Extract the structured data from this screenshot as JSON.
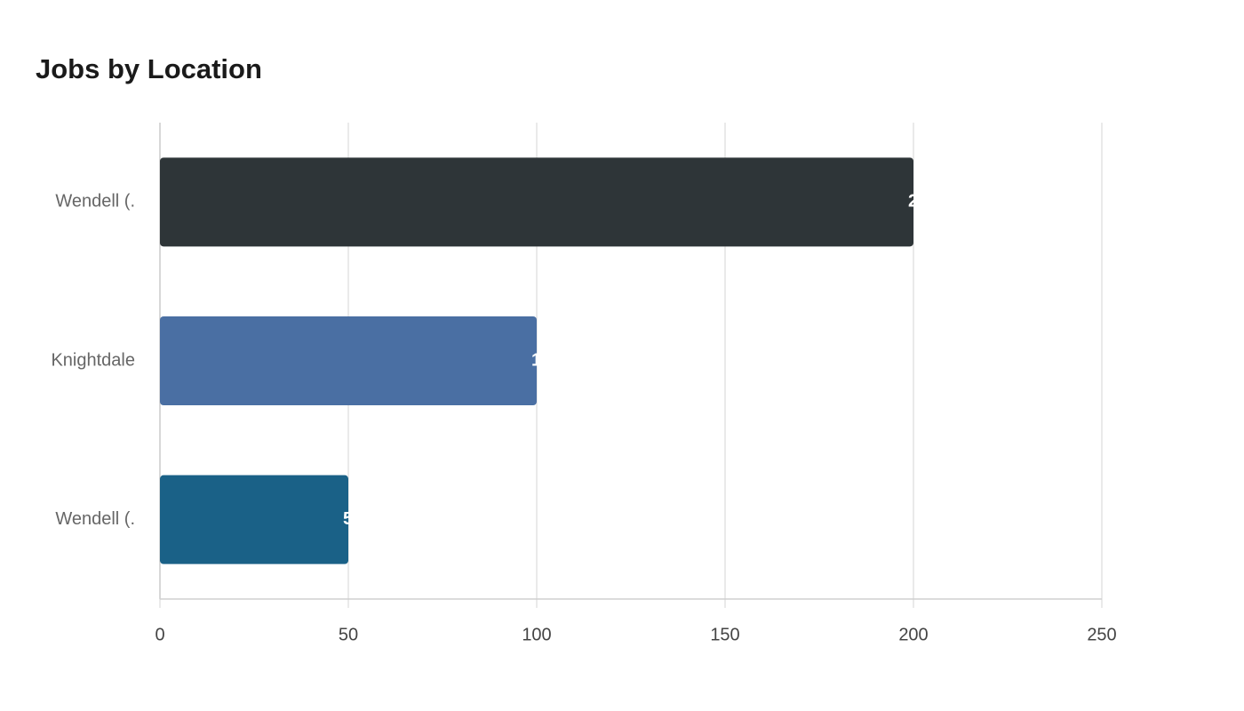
{
  "chart_data": {
    "type": "bar",
    "orientation": "horizontal",
    "title": "Jobs by Location",
    "categories": [
      "Wendell (.",
      "Knightdale",
      "Wendell (."
    ],
    "series": [
      {
        "values": [
          200,
          100,
          50
        ],
        "colors": [
          "#2e3538",
          "#4a6fa3",
          "#1a6187"
        ]
      }
    ],
    "xlim": [
      0,
      250
    ],
    "xticks": [
      0,
      50,
      100,
      150,
      200,
      250
    ],
    "grid": true
  }
}
